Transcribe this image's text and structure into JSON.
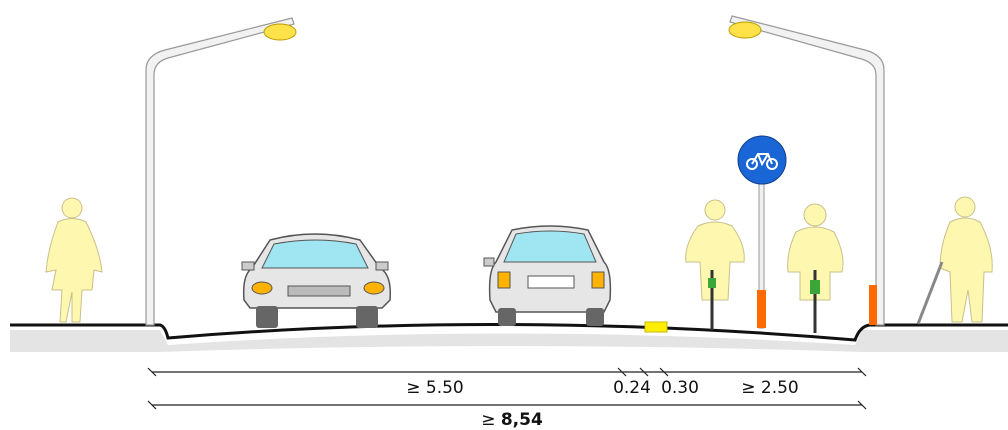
{
  "dimensions": [
    {
      "label": "≥ 5.50"
    },
    {
      "label": "0.24"
    },
    {
      "label": "0.30"
    },
    {
      "label": "≥ 2.50"
    }
  ],
  "total": {
    "symbol": "≥",
    "value": "8,54"
  }
}
